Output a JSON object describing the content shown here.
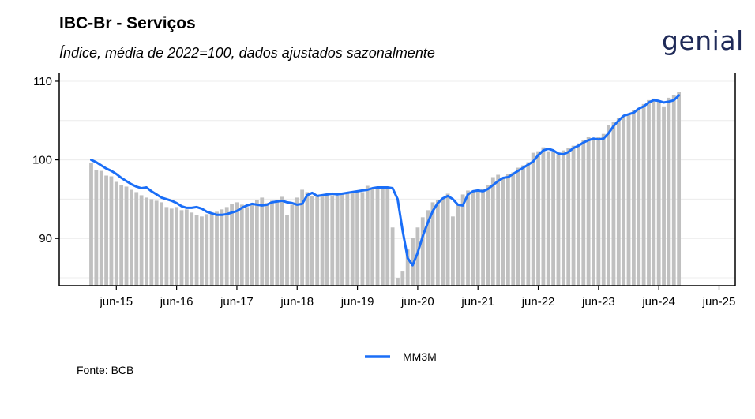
{
  "header": {
    "title": "IBC-Br - Serviços",
    "subtitle": "Índice, média de 2022=100, dados ajustados sazonalmente",
    "logo_text": "genial"
  },
  "footer": {
    "source": "Fonte: BCB"
  },
  "colors": {
    "bars": "#c0c0c0",
    "line": "#1a6ef7",
    "logo": "#1f2a58"
  },
  "chart_data": {
    "type": "bar+line",
    "x_start": "2015-01",
    "x_end": "2025-03",
    "xtick_labels": [
      "jun-15",
      "jun-16",
      "jun-17",
      "jun-18",
      "jun-19",
      "jun-20",
      "jun-21",
      "jun-22",
      "jun-23",
      "jun-24",
      "jun-25"
    ],
    "ytick_labels": [
      "90",
      "100",
      "110"
    ],
    "ylim": [
      84,
      111
    ],
    "grid": true,
    "legend": {
      "position": "bottom",
      "entries": [
        "MM3M"
      ]
    },
    "series": [
      {
        "type": "bar",
        "values": [
          99.6,
          98.7,
          98.6,
          98.0,
          97.9,
          97.2,
          96.8,
          96.6,
          96.2,
          95.9,
          95.5,
          95.2,
          95.0,
          94.8,
          94.6,
          94.0,
          93.8,
          94.0,
          93.6,
          93.7,
          93.3,
          93.0,
          92.8,
          93.1,
          93.2,
          93.4,
          93.7,
          94.0,
          94.4,
          94.6,
          94.3,
          94.0,
          94.3,
          94.9,
          95.2,
          94.5,
          94.8,
          94.9,
          95.3,
          93.0,
          94.3,
          95.2,
          96.2,
          95.9,
          95.4,
          95.4,
          95.5,
          95.6,
          95.5,
          95.4,
          95.7,
          95.8,
          95.8,
          96.0,
          95.9,
          96.7,
          96.5,
          96.5,
          96.6,
          96.4,
          91.4,
          85.0,
          85.8,
          88.6,
          90.1,
          91.4,
          92.7,
          93.6,
          94.6,
          94.9,
          95.1,
          95.7,
          92.8,
          94.3,
          95.6,
          96.1,
          96.1,
          96.1,
          96.3,
          96.8,
          97.8,
          98.1,
          97.6,
          98.2,
          98.4,
          99.0,
          99.3,
          99.7,
          100.9,
          101.1,
          101.6,
          101.1,
          101.0,
          100.7,
          101.2,
          101.5,
          101.8,
          102.1,
          102.5,
          102.9,
          102.6,
          102.9,
          103.3,
          104.4,
          104.8,
          105.3,
          105.6,
          105.8,
          106.3,
          106.6,
          107.1,
          107.6,
          107.8,
          107.4,
          106.8,
          107.9,
          108.2,
          108.6
        ]
      },
      {
        "type": "line",
        "name": "MM3M",
        "values": [
          100.0,
          99.7,
          99.3,
          98.9,
          98.6,
          98.2,
          97.7,
          97.3,
          96.9,
          96.6,
          96.4,
          96.5,
          96.0,
          95.6,
          95.2,
          95.0,
          94.8,
          94.5,
          94.1,
          93.9,
          93.9,
          94.0,
          93.8,
          93.4,
          93.2,
          93.0,
          93.0,
          93.1,
          93.3,
          93.5,
          93.9,
          94.2,
          94.4,
          94.3,
          94.2,
          94.3,
          94.6,
          94.7,
          94.8,
          94.6,
          94.5,
          94.3,
          94.4,
          95.5,
          95.8,
          95.4,
          95.5,
          95.6,
          95.7,
          95.6,
          95.7,
          95.8,
          95.9,
          96.0,
          96.1,
          96.2,
          96.4,
          96.5,
          96.5,
          96.5,
          96.4,
          95.0,
          91.0,
          87.5,
          86.6,
          88.2,
          90.3,
          92.0,
          93.5,
          94.5,
          95.1,
          95.4,
          95.0,
          94.3,
          94.2,
          95.6,
          96.0,
          96.1,
          96.0,
          96.3,
          96.8,
          97.3,
          97.7,
          97.8,
          98.2,
          98.6,
          99.0,
          99.4,
          99.8,
          100.6,
          101.2,
          101.4,
          101.2,
          100.8,
          100.7,
          101.0,
          101.5,
          101.8,
          102.2,
          102.5,
          102.7,
          102.6,
          102.7,
          103.4,
          104.3,
          105.0,
          105.6,
          105.8,
          106.0,
          106.5,
          106.8,
          107.3,
          107.6,
          107.5,
          107.3,
          107.4,
          107.6,
          108.2
        ]
      }
    ]
  }
}
